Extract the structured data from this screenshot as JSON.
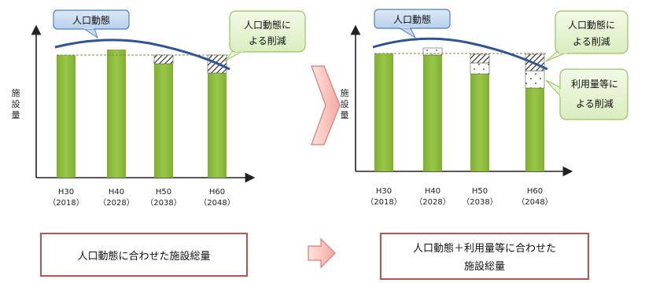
{
  "left_panel": {
    "y_axis_label": [
      "施",
      "設",
      "量"
    ],
    "pop_callout": "人口動態",
    "reduction_callout": [
      "人口動態に",
      "よる削減"
    ],
    "x_ticks": [
      {
        "year": "H30",
        "western": "（2018）"
      },
      {
        "year": "H40",
        "western": "（2028）"
      },
      {
        "year": "H50",
        "western": "（2038）"
      },
      {
        "year": "H60",
        "western": "（2048）"
      }
    ],
    "caption": [
      "人口動態に合わせた施設総量"
    ]
  },
  "right_panel": {
    "y_axis_label": [
      "施",
      "設",
      "量"
    ],
    "pop_callout": "人口動態",
    "reduction_callout": [
      "人口動態に",
      "よる削減"
    ],
    "usage_callout": [
      "利用量等に",
      "よる削減"
    ],
    "x_ticks": [
      {
        "year": "H30",
        "western": "（2018）"
      },
      {
        "year": "H40",
        "western": "（2028）"
      },
      {
        "year": "H50",
        "western": "（2038）"
      },
      {
        "year": "H60",
        "western": "（2048）"
      }
    ],
    "caption": [
      "人口動態＋利用量等に合わせた",
      "施設総量"
    ]
  },
  "colors": {
    "bar": "#8dbb3a",
    "bar_top": "#a6cf55",
    "trend_line": "#2f5597",
    "pop_callout_fill": "#c5d9f1",
    "pop_callout_stroke": "#4f81bd",
    "green_callout_fill": "#e8f5d6",
    "green_callout_stroke": "#9bc25c",
    "caption_border": "#c0504d",
    "arrow_fill": "#f8c7c2",
    "arrow_stroke": "#e07a70"
  }
}
